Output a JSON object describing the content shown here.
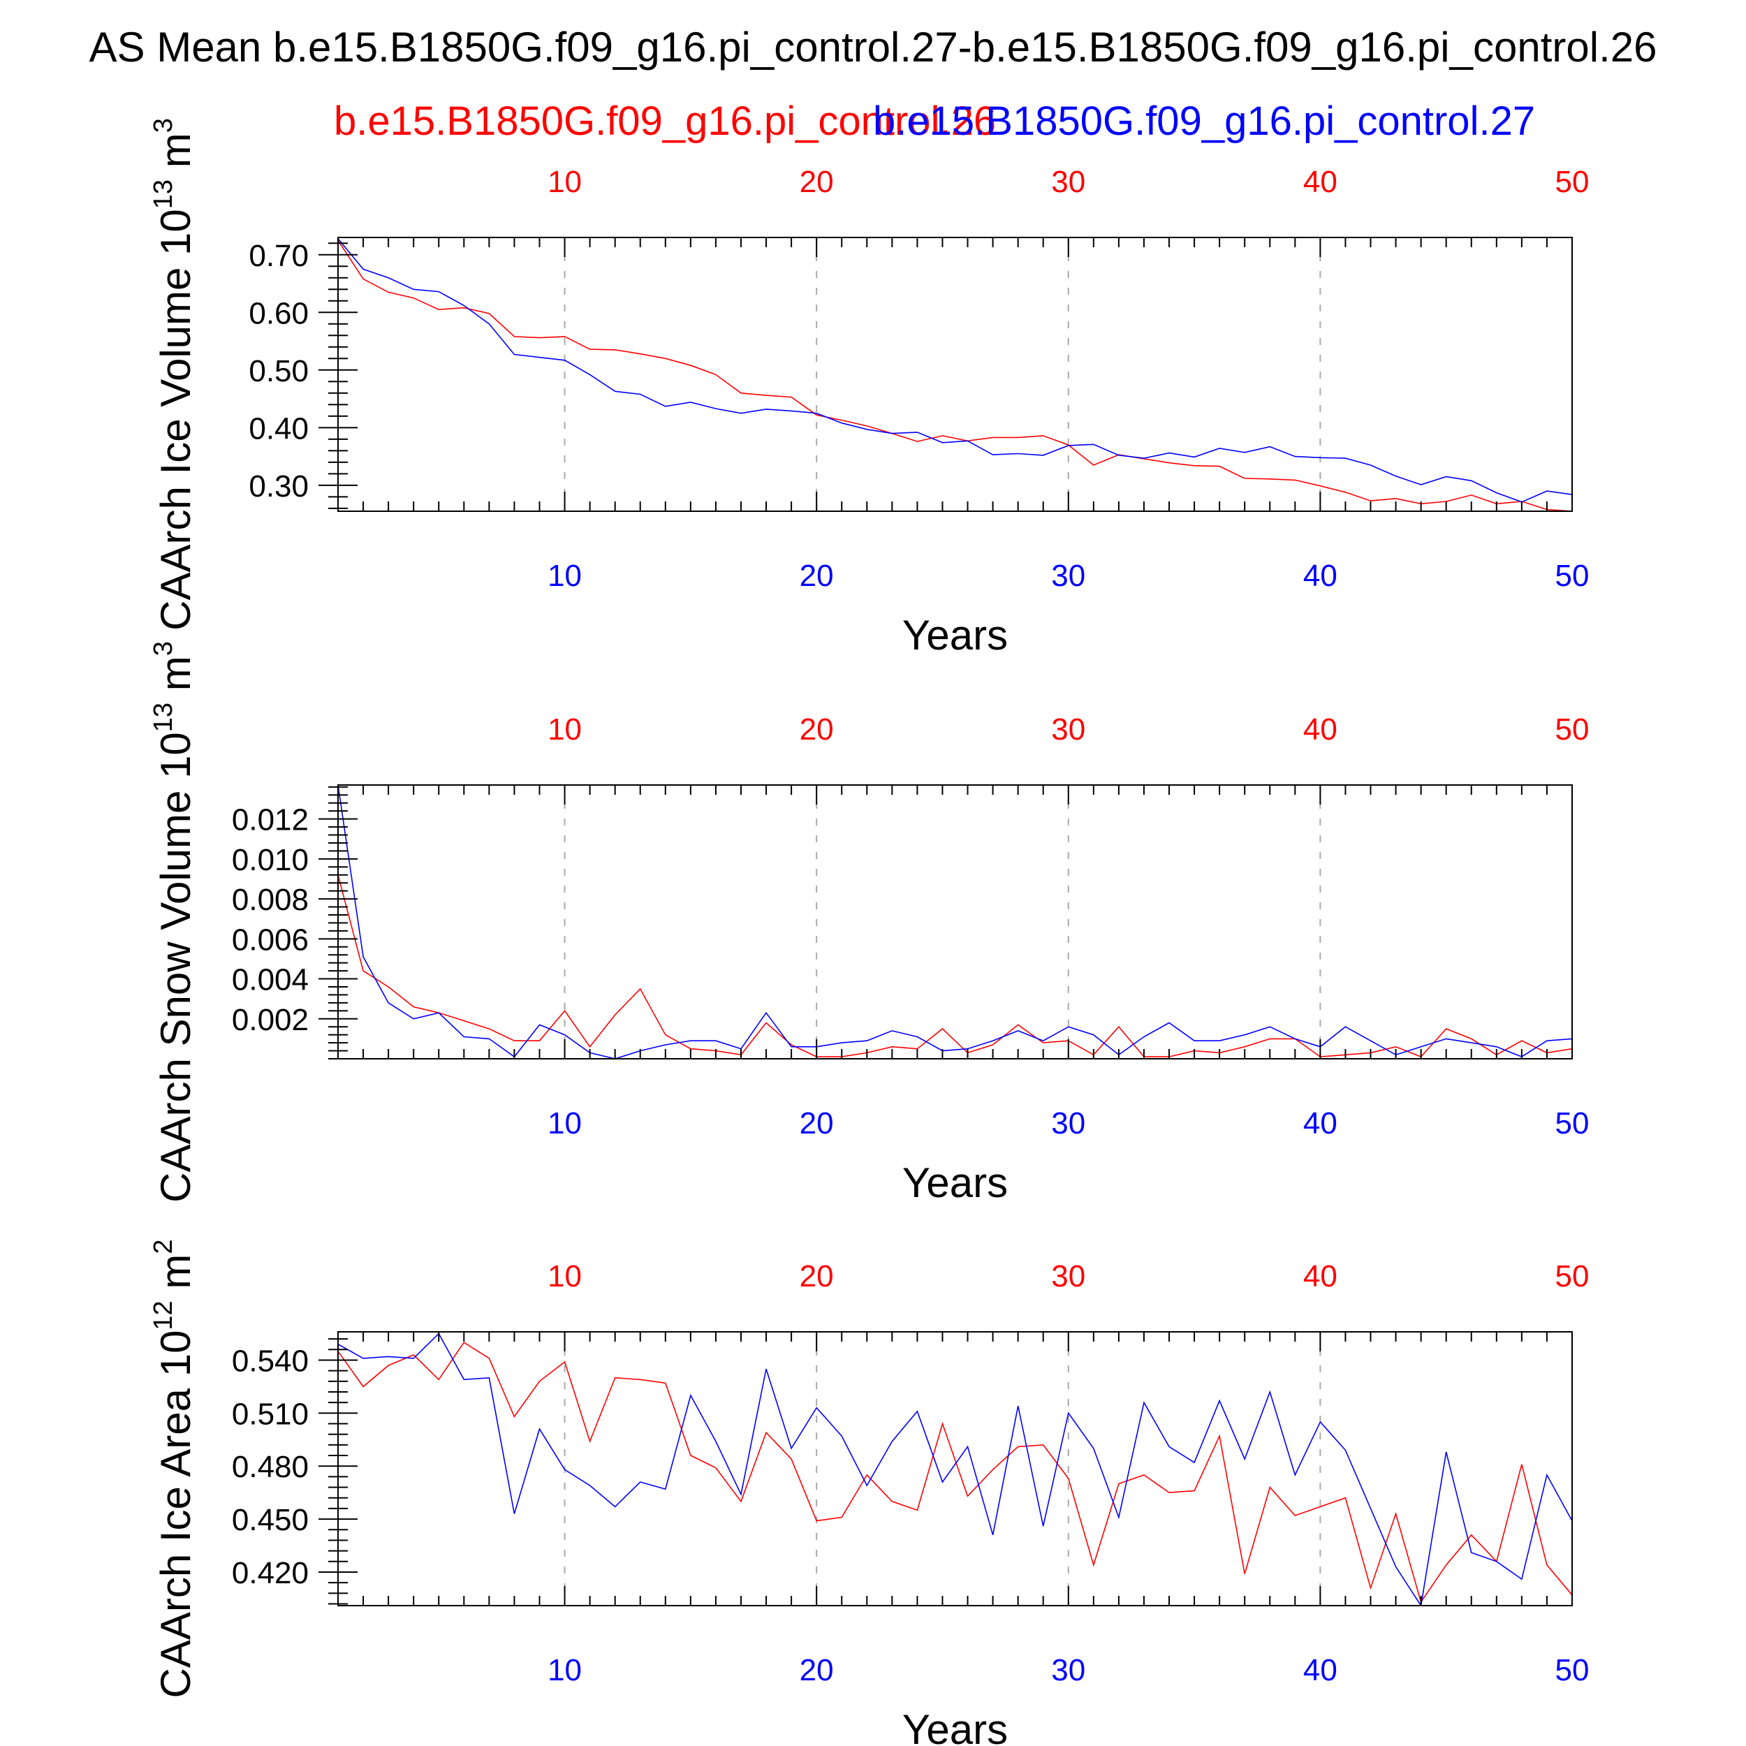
{
  "title": "AS Mean b.e15.B1850G.f09_g16.pi_control.27-b.e15.B1850G.f09_g16.pi_control.26",
  "legend": {
    "red_label": "b.e15.B1850G.f09_g16.pi_control.26",
    "blue_label": "b.e15.B1850G.f09_g16.pi_control.27"
  },
  "colors": {
    "red": "#ff0000",
    "blue": "#0000ff",
    "axis": "#000000",
    "grid": "#aaaaaa"
  },
  "chart_data": [
    {
      "type": "line",
      "title": "",
      "xlabel": "Years",
      "ylabel": "CAArch Ice Volume 10^13 m^3",
      "ylabel_parts": {
        "main": "CAArch Ice Volume 10",
        "exp1": "13",
        "unit": " m",
        "exp2": "3"
      },
      "xlim": [
        1,
        50
      ],
      "ylim": [
        0.255,
        0.73
      ],
      "x_ticks": [
        10,
        20,
        30,
        40,
        50
      ],
      "y_ticks": [
        0.3,
        0.4,
        0.5,
        0.6,
        0.7
      ],
      "y_tick_labels": [
        "0.30",
        "0.40",
        "0.50",
        "0.60",
        "0.70"
      ],
      "grid": "x-dashed",
      "series": [
        {
          "name": "b.e15.B1850G.f09_g16.pi_control.26",
          "color": "red",
          "x": [
            1,
            2,
            3,
            4,
            5,
            6,
            7,
            8,
            9,
            10,
            11,
            12,
            13,
            14,
            15,
            16,
            17,
            18,
            19,
            20,
            21,
            22,
            23,
            24,
            25,
            26,
            27,
            28,
            29,
            30,
            31,
            32,
            33,
            34,
            35,
            36,
            37,
            38,
            39,
            40,
            41,
            42,
            43,
            44,
            45,
            46,
            47,
            48,
            49,
            50
          ],
          "values": [
            0.725,
            0.658,
            0.635,
            0.625,
            0.605,
            0.608,
            0.598,
            0.558,
            0.556,
            0.558,
            0.536,
            0.535,
            0.528,
            0.52,
            0.508,
            0.492,
            0.46,
            0.456,
            0.453,
            0.422,
            0.413,
            0.403,
            0.39,
            0.376,
            0.386,
            0.377,
            0.383,
            0.383,
            0.386,
            0.37,
            0.335,
            0.353,
            0.346,
            0.339,
            0.334,
            0.333,
            0.312,
            0.311,
            0.309,
            0.299,
            0.288,
            0.273,
            0.277,
            0.268,
            0.272,
            0.283,
            0.268,
            0.272,
            0.258,
            0.255
          ]
        },
        {
          "name": "b.e15.B1850G.f09_g16.pi_control.27",
          "color": "blue",
          "x": [
            1,
            2,
            3,
            4,
            5,
            6,
            7,
            8,
            9,
            10,
            11,
            12,
            13,
            14,
            15,
            16,
            17,
            18,
            19,
            20,
            21,
            22,
            23,
            24,
            25,
            26,
            27,
            28,
            29,
            30,
            31,
            32,
            33,
            34,
            35,
            36,
            37,
            38,
            39,
            40,
            41,
            42,
            43,
            44,
            45,
            46,
            47,
            48,
            49,
            50
          ],
          "values": [
            0.728,
            0.675,
            0.66,
            0.64,
            0.636,
            0.612,
            0.58,
            0.527,
            0.522,
            0.517,
            0.492,
            0.463,
            0.458,
            0.437,
            0.444,
            0.433,
            0.425,
            0.432,
            0.429,
            0.425,
            0.408,
            0.397,
            0.39,
            0.392,
            0.374,
            0.377,
            0.353,
            0.355,
            0.352,
            0.369,
            0.371,
            0.352,
            0.347,
            0.356,
            0.349,
            0.364,
            0.357,
            0.367,
            0.35,
            0.348,
            0.347,
            0.335,
            0.316,
            0.301,
            0.315,
            0.308,
            0.287,
            0.271,
            0.29,
            0.284
          ]
        }
      ]
    },
    {
      "type": "line",
      "title": "",
      "xlabel": "Years",
      "ylabel": "CAArch Snow Volume 10^13 m^3",
      "ylabel_parts": {
        "main": "CAArch Snow Volume 10",
        "exp1": "13",
        "unit": " m",
        "exp2": "3"
      },
      "xlim": [
        1,
        50
      ],
      "ylim": [
        0.0,
        0.0137
      ],
      "x_ticks": [
        10,
        20,
        30,
        40,
        50
      ],
      "y_ticks": [
        0.002,
        0.004,
        0.006,
        0.008,
        0.01,
        0.012
      ],
      "y_tick_labels": [
        "0.002",
        "0.004",
        "0.006",
        "0.008",
        "0.010",
        "0.012"
      ],
      "grid": "x-dashed",
      "series": [
        {
          "name": "b.e15.B1850G.f09_g16.pi_control.26",
          "color": "red",
          "x": [
            1,
            2,
            3,
            4,
            5,
            6,
            7,
            8,
            9,
            10,
            11,
            12,
            13,
            14,
            15,
            16,
            17,
            18,
            19,
            20,
            21,
            22,
            23,
            24,
            25,
            26,
            27,
            28,
            29,
            30,
            31,
            32,
            33,
            34,
            35,
            36,
            37,
            38,
            39,
            40,
            41,
            42,
            43,
            44,
            45,
            46,
            47,
            48,
            49,
            50
          ],
          "values": [
            0.0092,
            0.0044,
            0.0036,
            0.0026,
            0.0023,
            0.0019,
            0.0015,
            0.0009,
            0.0009,
            0.0024,
            0.0006,
            0.0022,
            0.0035,
            0.0012,
            0.0005,
            0.0004,
            0.0002,
            0.0018,
            0.0007,
            0.0001,
            0.0001,
            0.0003,
            0.0006,
            0.0005,
            0.0015,
            0.0003,
            0.0007,
            0.0017,
            0.0008,
            0.0009,
            0.0002,
            0.0016,
            0.0001,
            0.0001,
            0.0004,
            0.0003,
            0.0006,
            0.001,
            0.001,
            0.0001,
            0.0002,
            0.0003,
            0.0006,
            0.0001,
            0.0015,
            0.001,
            0.0002,
            0.0009,
            0.0003,
            0.0005
          ]
        },
        {
          "name": "b.e15.B1850G.f09_g16.pi_control.27",
          "color": "blue",
          "x": [
            1,
            2,
            3,
            4,
            5,
            6,
            7,
            8,
            9,
            10,
            11,
            12,
            13,
            14,
            15,
            16,
            17,
            18,
            19,
            20,
            21,
            22,
            23,
            24,
            25,
            26,
            27,
            28,
            29,
            30,
            31,
            32,
            33,
            34,
            35,
            36,
            37,
            38,
            39,
            40,
            41,
            42,
            43,
            44,
            45,
            46,
            47,
            48,
            49,
            50
          ],
          "values": [
            0.0137,
            0.0051,
            0.0028,
            0.002,
            0.0023,
            0.0011,
            0.001,
            0.0001,
            0.0017,
            0.0012,
            0.0003,
            0.0,
            0.0004,
            0.0007,
            0.0009,
            0.0009,
            0.0005,
            0.0023,
            0.0006,
            0.0006,
            0.0008,
            0.0009,
            0.0014,
            0.0011,
            0.0004,
            0.0005,
            0.0009,
            0.0014,
            0.0009,
            0.0016,
            0.0012,
            0.0002,
            0.0011,
            0.0018,
            0.0009,
            0.0009,
            0.0012,
            0.0016,
            0.001,
            0.0006,
            0.0016,
            0.0009,
            0.0002,
            0.0006,
            0.001,
            0.0008,
            0.0006,
            0.0001,
            0.0009,
            0.001
          ]
        }
      ]
    },
    {
      "type": "line",
      "title": "",
      "xlabel": "Years",
      "ylabel": "CAArch Ice Area 10^12 m^2",
      "ylabel_parts": {
        "main": "CAArch Ice Area 10",
        "exp1": "12",
        "unit": " m",
        "exp2": "2"
      },
      "xlim": [
        1,
        50
      ],
      "ylim": [
        0.401,
        0.556
      ],
      "x_ticks": [
        10,
        20,
        30,
        40,
        50
      ],
      "y_ticks": [
        0.42,
        0.45,
        0.48,
        0.51,
        0.54
      ],
      "y_tick_labels": [
        "0.420",
        "0.450",
        "0.480",
        "0.510",
        "0.540"
      ],
      "grid": "x-dashed",
      "series": [
        {
          "name": "b.e15.B1850G.f09_g16.pi_control.26",
          "color": "red",
          "x": [
            1,
            2,
            3,
            4,
            5,
            6,
            7,
            8,
            9,
            10,
            11,
            12,
            13,
            14,
            15,
            16,
            17,
            18,
            19,
            20,
            21,
            22,
            23,
            24,
            25,
            26,
            27,
            28,
            29,
            30,
            31,
            32,
            33,
            34,
            35,
            36,
            37,
            38,
            39,
            40,
            41,
            42,
            43,
            44,
            45,
            46,
            47,
            48,
            49,
            50
          ],
          "values": [
            0.545,
            0.525,
            0.537,
            0.543,
            0.529,
            0.55,
            0.541,
            0.508,
            0.528,
            0.539,
            0.494,
            0.53,
            0.529,
            0.527,
            0.486,
            0.479,
            0.46,
            0.499,
            0.484,
            0.449,
            0.451,
            0.475,
            0.46,
            0.455,
            0.504,
            0.463,
            0.478,
            0.491,
            0.492,
            0.473,
            0.424,
            0.47,
            0.475,
            0.465,
            0.466,
            0.497,
            0.419,
            0.468,
            0.452,
            0.457,
            0.462,
            0.411,
            0.453,
            0.403,
            0.424,
            0.441,
            0.426,
            0.481,
            0.424,
            0.407
          ]
        },
        {
          "name": "b.e15.B1850G.f09_g16.pi_control.27",
          "color": "blue",
          "x": [
            1,
            2,
            3,
            4,
            5,
            6,
            7,
            8,
            9,
            10,
            11,
            12,
            13,
            14,
            15,
            16,
            17,
            18,
            19,
            20,
            21,
            22,
            23,
            24,
            25,
            26,
            27,
            28,
            29,
            30,
            31,
            32,
            33,
            34,
            35,
            36,
            37,
            38,
            39,
            40,
            41,
            42,
            43,
            44,
            45,
            46,
            47,
            48,
            49,
            50
          ],
          "values": [
            0.549,
            0.541,
            0.542,
            0.541,
            0.555,
            0.529,
            0.53,
            0.453,
            0.501,
            0.478,
            0.469,
            0.457,
            0.471,
            0.467,
            0.52,
            0.494,
            0.464,
            0.535,
            0.49,
            0.513,
            0.497,
            0.469,
            0.494,
            0.511,
            0.471,
            0.491,
            0.441,
            0.514,
            0.446,
            0.51,
            0.49,
            0.451,
            0.516,
            0.491,
            0.482,
            0.517,
            0.484,
            0.522,
            0.475,
            0.505,
            0.489,
            0.456,
            0.423,
            0.401,
            0.488,
            0.431,
            0.426,
            0.416,
            0.475,
            0.449
          ]
        }
      ]
    }
  ]
}
